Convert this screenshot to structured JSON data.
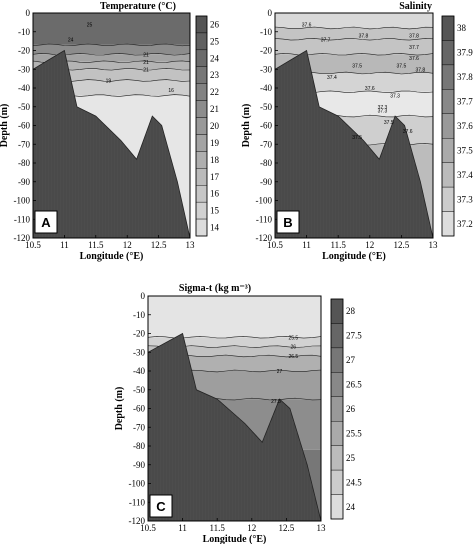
{
  "chart_data": [
    {
      "type": "heatmap",
      "panel": "A",
      "title": "Temperature (°C)",
      "xlabel": "Longitude (°E)",
      "ylabel": "Depth (m)",
      "xlim": [
        10.5,
        13
      ],
      "ylim": [
        -120,
        0
      ],
      "x_ticks": [
        "10.5",
        "11",
        "11.5",
        "12",
        "12.5",
        "13"
      ],
      "y_ticks": [
        "0",
        "-10",
        "-20",
        "-30",
        "-40",
        "-50",
        "-60",
        "-70",
        "-80",
        "-90",
        "-100",
        "-110",
        "-120"
      ],
      "colorbar_ticks": [
        "26",
        "25",
        "24",
        "23",
        "22",
        "21",
        "20",
        "19",
        "18",
        "17",
        "16",
        "15",
        "14"
      ],
      "contour_labels": [
        "25",
        "24",
        "21",
        "21",
        "21",
        "19",
        "16"
      ],
      "bathymetry_depth_m": [
        [
          10.5,
          -30
        ],
        [
          10.8,
          -24
        ],
        [
          11.0,
          -20
        ],
        [
          11.2,
          -50
        ],
        [
          11.5,
          -55
        ],
        [
          11.9,
          -68
        ],
        [
          12.15,
          -78
        ],
        [
          12.4,
          -55
        ],
        [
          12.55,
          -60
        ],
        [
          12.8,
          -90
        ],
        [
          13.0,
          -120
        ]
      ]
    },
    {
      "type": "heatmap",
      "panel": "B",
      "title": "Salinity",
      "xlabel": "Longitude (°E)",
      "ylabel": "Depth (m)",
      "xlim": [
        10.5,
        13
      ],
      "ylim": [
        -120,
        0
      ],
      "x_ticks": [
        "10.5",
        "11",
        "11.5",
        "12",
        "12.5",
        "13"
      ],
      "y_ticks": [
        "0",
        "-10",
        "-20",
        "-30",
        "-40",
        "-50",
        "-60",
        "-70",
        "-80",
        "-90",
        "-100",
        "-110",
        "-120"
      ],
      "colorbar_ticks": [
        "38",
        "37.9",
        "37.8",
        "37.7",
        "37.6",
        "37.5",
        "37.4",
        "37.3",
        "37.2"
      ],
      "contour_labels": [
        "37.6",
        "37.7",
        "37.8",
        "37.8",
        "37.7",
        "37.6",
        "37.4",
        "37.5",
        "37.3",
        "37.3",
        "37.3",
        "37.5",
        "37.6",
        "37.5",
        "37.6",
        "37.5",
        "37.8"
      ],
      "bathymetry_depth_m": [
        [
          10.5,
          -30
        ],
        [
          10.8,
          -24
        ],
        [
          11.0,
          -20
        ],
        [
          11.2,
          -50
        ],
        [
          11.5,
          -55
        ],
        [
          11.9,
          -68
        ],
        [
          12.15,
          -78
        ],
        [
          12.4,
          -55
        ],
        [
          12.55,
          -60
        ],
        [
          12.8,
          -90
        ],
        [
          13.0,
          -120
        ]
      ]
    },
    {
      "type": "heatmap",
      "panel": "C",
      "title": "Sigma-t (kg m⁻³)",
      "xlabel": "Longitude (°E)",
      "ylabel": "Depth (m)",
      "xlim": [
        10.5,
        13
      ],
      "ylim": [
        -120,
        0
      ],
      "x_ticks": [
        "10.5",
        "11",
        "11.5",
        "12",
        "12.5",
        "13"
      ],
      "y_ticks": [
        "0",
        "-10",
        "-20",
        "-30",
        "-40",
        "-50",
        "-60",
        "-70",
        "-80",
        "-90",
        "-100",
        "-110",
        "-120"
      ],
      "colorbar_ticks": [
        "28",
        "27.5",
        "27",
        "26.5",
        "26",
        "25.5",
        "25",
        "24.5",
        "24"
      ],
      "contour_labels": [
        "25.5",
        "26",
        "26.5",
        "27",
        "27.5"
      ],
      "bathymetry_depth_m": [
        [
          10.5,
          -30
        ],
        [
          10.8,
          -24
        ],
        [
          11.0,
          -20
        ],
        [
          11.2,
          -50
        ],
        [
          11.5,
          -55
        ],
        [
          11.9,
          -68
        ],
        [
          12.15,
          -78
        ],
        [
          12.4,
          -55
        ],
        [
          12.55,
          -60
        ],
        [
          12.8,
          -90
        ],
        [
          13.0,
          -120
        ]
      ]
    }
  ]
}
